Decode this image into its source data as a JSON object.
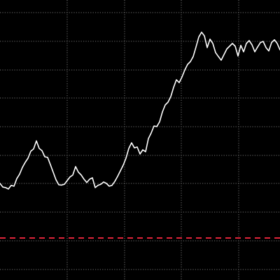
{
  "chart_data": {
    "type": "line",
    "title": "",
    "xlabel": "",
    "ylabel": "",
    "grid": true,
    "legend": "none",
    "ylim": [
      0,
      100
    ],
    "xlim": [
      0,
      100
    ],
    "colors": {
      "background": "#000000",
      "line": "#ffffff",
      "grid": "#6e6e6e",
      "reference": "#e0243a"
    },
    "reference_line": {
      "y": 15,
      "style": "dashed"
    },
    "series": [
      {
        "x": [
          0,
          1,
          2,
          3,
          4,
          5,
          6,
          7,
          8,
          9,
          10,
          11,
          12,
          13,
          14,
          15,
          16,
          17,
          18,
          19,
          20,
          21,
          22,
          23,
          24,
          25,
          26,
          27,
          28,
          29,
          30,
          31,
          32,
          33,
          34,
          35,
          36,
          37,
          38,
          39,
          40,
          41,
          42,
          43,
          44,
          45,
          46,
          47,
          48,
          49,
          50,
          51,
          52,
          53,
          54,
          55,
          56,
          57,
          58,
          59,
          60,
          61,
          62,
          63,
          64,
          65,
          66,
          67,
          68,
          69,
          70,
          71,
          72,
          73,
          74,
          75,
          76,
          77,
          78,
          79,
          80,
          81,
          82,
          83,
          84,
          85,
          86,
          87,
          88,
          89,
          90,
          91,
          92,
          93,
          94,
          95,
          96,
          97,
          98,
          99,
          100
        ],
        "values": [
          34.5,
          33.2,
          33.0,
          32.5,
          33.8,
          33.5,
          36.2,
          37.8,
          40.2,
          42.0,
          43.5,
          46.0,
          46.8,
          49.7,
          47.0,
          46.2,
          44.0,
          43.8,
          41.2,
          38.5,
          35.8,
          34.0,
          33.9,
          34.2,
          35.5,
          36.8,
          37.5,
          40.5,
          38.5,
          37.5,
          36.0,
          34.8,
          36.0,
          36.5,
          33.0,
          33.8,
          34.2,
          35.0,
          34.5,
          33.5,
          33.8,
          35.2,
          37.0,
          39.0,
          41.0,
          43.5,
          47.0,
          49.0,
          47.2,
          47.5,
          45.0,
          46.5,
          45.8,
          50.5,
          52.5,
          55.0,
          54.8,
          56.5,
          60.0,
          62.5,
          63.5,
          65.5,
          68.8,
          71.5,
          70.5,
          72.5,
          75.0,
          77.0,
          78.0,
          79.8,
          83.2,
          86.8,
          88.5,
          87.2,
          83.0,
          86.0,
          84.5,
          81.2,
          79.8,
          78.5,
          80.5,
          82.5,
          83.5,
          84.5,
          83.5,
          80.0,
          83.8,
          81.5,
          84.5,
          85.5,
          84.0,
          81.5,
          83.2,
          84.8,
          85.2,
          83.0,
          81.8,
          84.8,
          85.8,
          84.5,
          82.2
        ]
      }
    ]
  }
}
